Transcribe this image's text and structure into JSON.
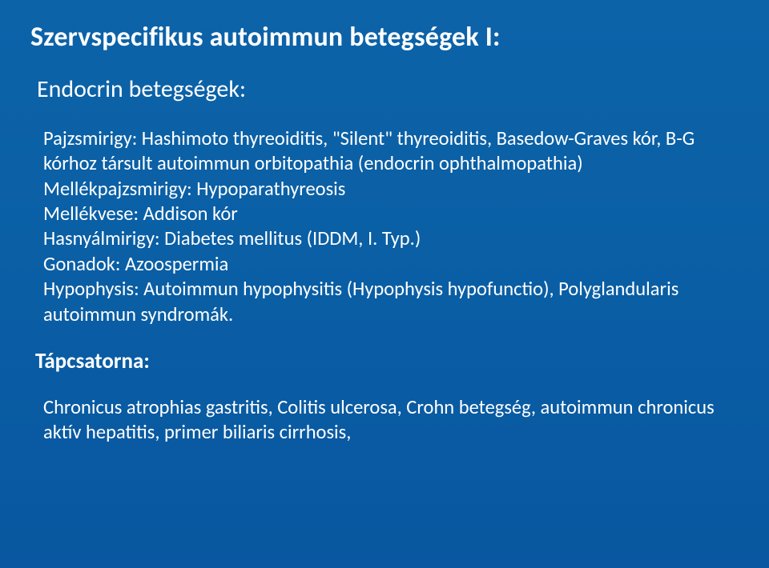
{
  "colors": {
    "bg_top": "#0d63a8",
    "bg_mid": "#0a5fa5",
    "bg_bottom": "#0857a0",
    "text": "#ffffff"
  },
  "typography": {
    "title_fontsize": 34,
    "title_weight": 700,
    "section_heading_fontsize": 30,
    "section_heading_weight": 400,
    "body_fontsize": 24.5,
    "body_weight": 400,
    "sub_heading_fontsize": 27,
    "sub_heading_weight": 700,
    "line_height": 1.28,
    "font_family": "Calibri"
  },
  "title": "Szervspecifikus autoimmun betegségek I:",
  "section1": {
    "heading": "Endocrin betegségek:",
    "p1": "Pajzsmirigy: Hashimoto thyreoiditis, \"Silent\" thyreoiditis, Basedow-Graves kór, B-G kórhoz társult autoimmun orbitopathia (endocrin ophthalmopathia)",
    "p2": "Mellékpajzsmirigy: Hypoparathyreosis",
    "p3": "Mellékvese: Addison kór",
    "p4": "Hasnyálmirigy: Diabetes mellitus (IDDM, I. Typ.)",
    "p5": "Gonadok: Azoospermia",
    "p6": "Hypophysis: Autoimmun hypophysitis (Hypophysis hypofunctio), Polyglandularis autoimmun syndromák."
  },
  "section2": {
    "heading": "Tápcsatorna:",
    "p1": "Chronicus atrophias gastritis, Colitis ulcerosa, Crohn betegség, autoimmun chronicus aktív hepatitis, primer biliaris cirrhosis,"
  }
}
